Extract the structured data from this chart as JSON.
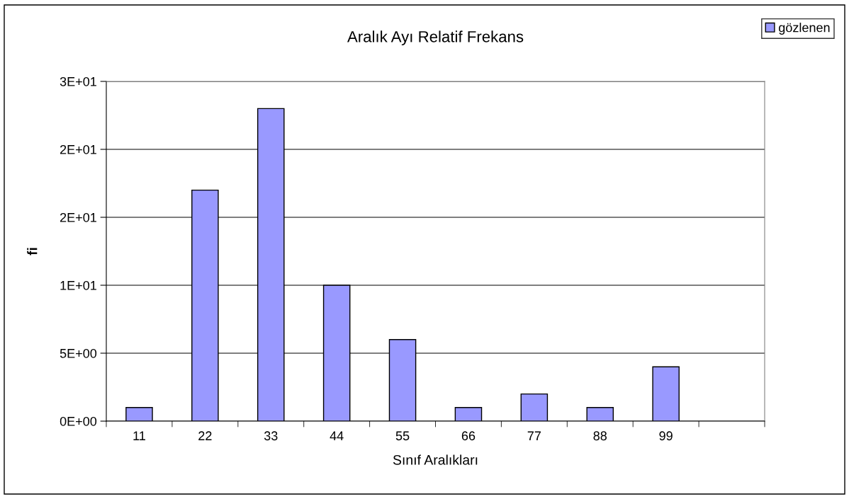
{
  "chart_data": {
    "type": "bar",
    "title": "Aralık Ayı Relatif Frekans",
    "xlabel": "Sınıf Aralıkları",
    "ylabel": "fi",
    "categories": [
      "11",
      "22",
      "33",
      "44",
      "55",
      "66",
      "77",
      "88",
      "99",
      null
    ],
    "series": [
      {
        "name": "gözlenen",
        "color": "#9999ff",
        "values": [
          1,
          17,
          23,
          10,
          6,
          1,
          2,
          1,
          4,
          null
        ]
      }
    ],
    "ylim": [
      0,
      25
    ],
    "yticks": [
      {
        "value": 0,
        "label": "0E+00"
      },
      {
        "value": 5,
        "label": "5E+00"
      },
      {
        "value": 10,
        "label": "1E+01"
      },
      {
        "value": 15,
        "label": "2E+01"
      },
      {
        "value": 20,
        "label": "2E+01"
      },
      {
        "value": 25,
        "label": "3E+01"
      }
    ],
    "grid": "y",
    "legend": "top right"
  }
}
